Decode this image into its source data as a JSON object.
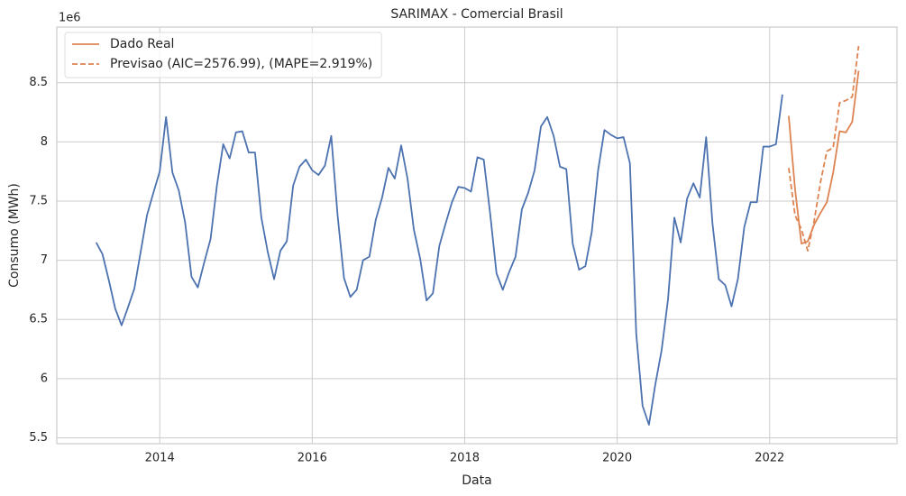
{
  "chart_data": {
    "type": "line",
    "title": "SARIMAX - Comercial Brasil",
    "xlabel": "Data",
    "ylabel": "Consumo (MWh)",
    "y_offset_label": "1e6",
    "xlim": [
      2012.65,
      2023.67
    ],
    "xticks": [
      2014,
      2016,
      2018,
      2020,
      2022
    ],
    "ylim": [
      5.45,
      8.97
    ],
    "yticks": [
      5.5,
      6.0,
      6.5,
      7.0,
      7.5,
      8.0,
      8.5
    ],
    "grid": true,
    "legend": "upper left",
    "series": [
      {
        "color": "#4c72b0",
        "style": "solid",
        "x": [
          2013.167,
          2013.25,
          2013.333,
          2013.417,
          2013.5,
          2013.583,
          2013.667,
          2013.75,
          2013.833,
          2013.917,
          2014.0,
          2014.083,
          2014.167,
          2014.25,
          2014.333,
          2014.417,
          2014.5,
          2014.583,
          2014.667,
          2014.75,
          2014.833,
          2014.917,
          2015.0,
          2015.083,
          2015.167,
          2015.25,
          2015.333,
          2015.417,
          2015.5,
          2015.583,
          2015.667,
          2015.75,
          2015.833,
          2015.917,
          2016.0,
          2016.083,
          2016.167,
          2016.25,
          2016.333,
          2016.417,
          2016.5,
          2016.583,
          2016.667,
          2016.75,
          2016.833,
          2016.917,
          2017.0,
          2017.083,
          2017.167,
          2017.25,
          2017.333,
          2017.417,
          2017.5,
          2017.583,
          2017.667,
          2017.75,
          2017.833,
          2017.917,
          2018.0,
          2018.083,
          2018.167,
          2018.25,
          2018.333,
          2018.417,
          2018.5,
          2018.583,
          2018.667,
          2018.75,
          2018.833,
          2018.917,
          2019.0,
          2019.083,
          2019.167,
          2019.25,
          2019.333,
          2019.417,
          2019.5,
          2019.583,
          2019.667,
          2019.75,
          2019.833,
          2019.917,
          2020.0,
          2020.083,
          2020.167,
          2020.25,
          2020.333,
          2020.417,
          2020.5,
          2020.583,
          2020.667,
          2020.75,
          2020.833,
          2020.917,
          2021.0,
          2021.083,
          2021.167,
          2021.25,
          2021.333,
          2021.417,
          2021.5,
          2021.583,
          2021.667,
          2021.75,
          2021.833,
          2021.917,
          2022.0,
          2022.083,
          2022.167
        ],
        "values": [
          7.15,
          7.05,
          6.83,
          6.59,
          6.45,
          6.6,
          6.76,
          7.07,
          7.38,
          7.57,
          7.75,
          8.21,
          7.74,
          7.59,
          7.32,
          6.86,
          6.77,
          6.98,
          7.18,
          7.63,
          7.98,
          7.86,
          8.08,
          8.09,
          7.91,
          7.91,
          7.36,
          7.07,
          6.84,
          7.08,
          7.16,
          7.63,
          7.79,
          7.85,
          7.76,
          7.72,
          7.8,
          8.05,
          7.38,
          6.85,
          6.69,
          6.75,
          7.0,
          7.03,
          7.34,
          7.53,
          7.78,
          7.69,
          7.97,
          7.69,
          7.26,
          7.01,
          6.66,
          6.72,
          7.12,
          7.31,
          7.49,
          7.62,
          7.61,
          7.58,
          7.87,
          7.85,
          7.4,
          6.89,
          6.75,
          6.9,
          7.03,
          7.43,
          7.57,
          7.76,
          8.13,
          8.21,
          8.05,
          7.79,
          7.77,
          7.14,
          6.92,
          6.95,
          7.24,
          7.76,
          8.1,
          8.06,
          8.03,
          8.04,
          7.82,
          6.38,
          5.77,
          5.61,
          5.95,
          6.24,
          6.67,
          7.36,
          7.15,
          7.52,
          7.65,
          7.53,
          8.04,
          7.31,
          6.84,
          6.79,
          6.61,
          6.84,
          7.28,
          7.49,
          7.49,
          7.96,
          7.96,
          7.98,
          8.4
        ]
      },
      {
        "name": "Dado Real",
        "color": "#dd8452",
        "style": "solid",
        "x": [
          2022.25,
          2022.333,
          2022.417,
          2022.5,
          2022.583,
          2022.667,
          2022.75,
          2022.833,
          2022.917,
          2023.0,
          2023.083,
          2023.167
        ],
        "values": [
          8.22,
          7.6,
          7.14,
          7.16,
          7.3,
          7.4,
          7.49,
          7.74,
          8.09,
          8.08,
          8.17,
          8.6
        ]
      },
      {
        "name": "Previsao (AIC=2576.99), (MAPE=2.919%)",
        "color": "#dd8452",
        "style": "dashed",
        "x": [
          2022.25,
          2022.333,
          2022.417,
          2022.5,
          2022.583,
          2022.667,
          2022.75,
          2022.833,
          2022.917,
          2023.0,
          2023.083,
          2023.167
        ],
        "values": [
          7.78,
          7.38,
          7.26,
          7.08,
          7.33,
          7.66,
          7.92,
          7.95,
          8.33,
          8.35,
          8.38,
          8.81
        ]
      }
    ]
  }
}
